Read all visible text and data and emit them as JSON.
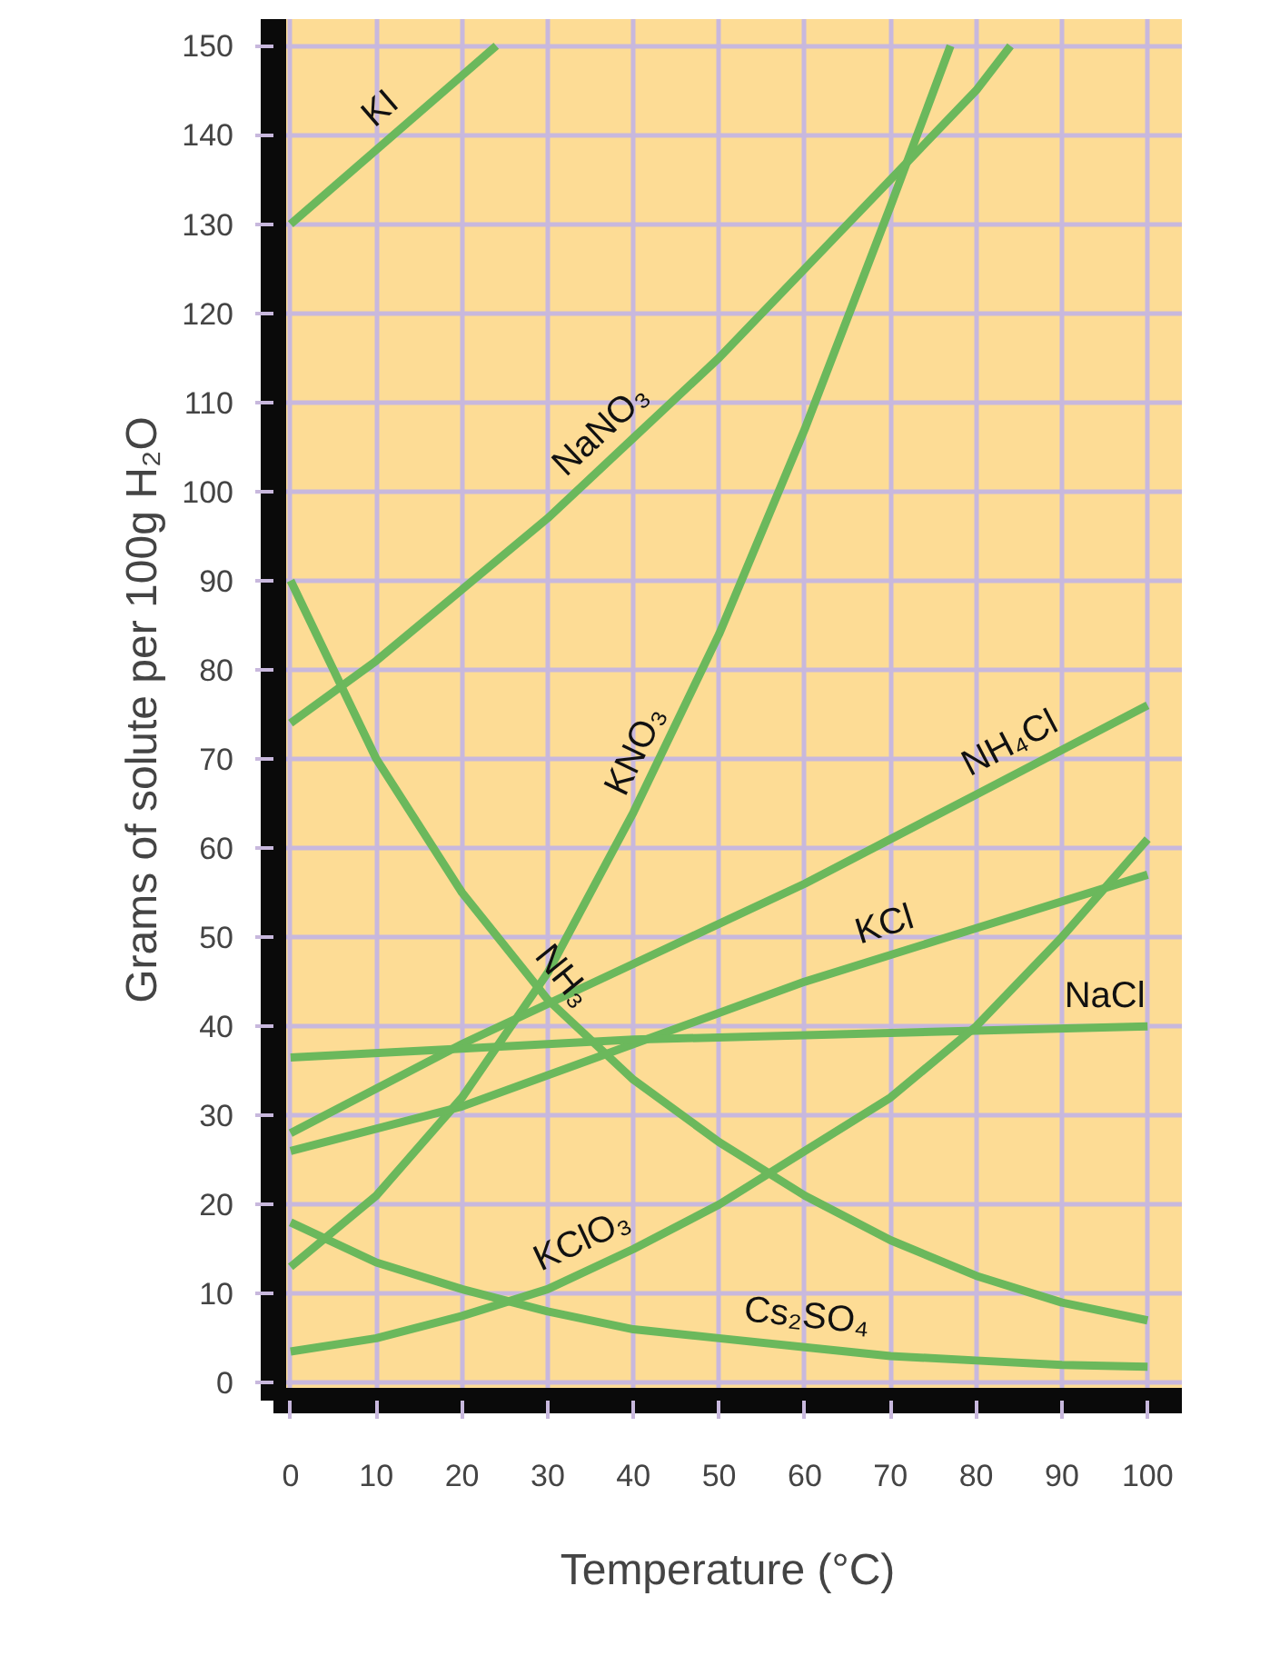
{
  "chart_data": {
    "type": "line",
    "xlabel": "Temperature (°C)",
    "ylabel": "Grams of solute per 100g H₂O",
    "xlim": [
      -2,
      104
    ],
    "ylim": [
      -2,
      153
    ],
    "xticks": [
      0,
      10,
      20,
      30,
      40,
      50,
      60,
      70,
      80,
      90,
      100
    ],
    "yticks": [
      0,
      10,
      20,
      30,
      40,
      50,
      60,
      70,
      80,
      90,
      100,
      110,
      120,
      130,
      140,
      150
    ],
    "grid": true,
    "marker": "none",
    "line_style": "solid",
    "series": [
      {
        "name": "KI",
        "color": "#6bb85c",
        "x": [
          0,
          24
        ],
        "values": [
          130,
          150
        ]
      },
      {
        "name": "NaNO₃",
        "color": "#6bb85c",
        "x": [
          0,
          10,
          20,
          30,
          40,
          50,
          60,
          70,
          80,
          84
        ],
        "values": [
          74,
          81,
          89,
          97,
          106,
          115,
          125,
          135,
          145,
          150
        ]
      },
      {
        "name": "KNO₃",
        "color": "#6bb85c",
        "x": [
          0,
          10,
          20,
          30,
          40,
          50,
          60,
          70,
          77
        ],
        "values": [
          13,
          21,
          32,
          46,
          64,
          84,
          107,
          132,
          150
        ]
      },
      {
        "name": "NH₃",
        "color": "#6bb85c",
        "x": [
          0,
          10,
          20,
          30,
          40,
          50,
          60,
          70,
          80,
          90,
          100
        ],
        "values": [
          90,
          70,
          55,
          43,
          34,
          27,
          21,
          16,
          12,
          9,
          7
        ]
      },
      {
        "name": "NH₄Cl",
        "color": "#6bb85c",
        "x": [
          0,
          20,
          40,
          60,
          80,
          100
        ],
        "values": [
          28,
          38,
          47,
          56,
          66,
          76
        ]
      },
      {
        "name": "KCl",
        "color": "#6bb85c",
        "x": [
          0,
          20,
          40,
          60,
          80,
          100
        ],
        "values": [
          26,
          31,
          38,
          45,
          51,
          57
        ]
      },
      {
        "name": "NaCl",
        "color": "#6bb85c",
        "x": [
          0,
          20,
          40,
          60,
          80,
          100
        ],
        "values": [
          36.5,
          37.5,
          38.5,
          39,
          39.5,
          40
        ]
      },
      {
        "name": "KClO₃",
        "color": "#6bb85c",
        "x": [
          0,
          10,
          20,
          30,
          40,
          50,
          60,
          70,
          80,
          90,
          100
        ],
        "values": [
          3.5,
          5,
          7.5,
          10.5,
          15,
          20,
          26,
          32,
          40,
          50,
          61
        ]
      },
      {
        "name": "Cs₂SO₄",
        "color": "#6bb85c",
        "x": [
          0,
          10,
          20,
          30,
          40,
          50,
          60,
          70,
          80,
          90,
          100
        ],
        "values": [
          18,
          13.5,
          10.5,
          8,
          6,
          5,
          4,
          3,
          2.5,
          2,
          1.8
        ]
      }
    ]
  }
}
